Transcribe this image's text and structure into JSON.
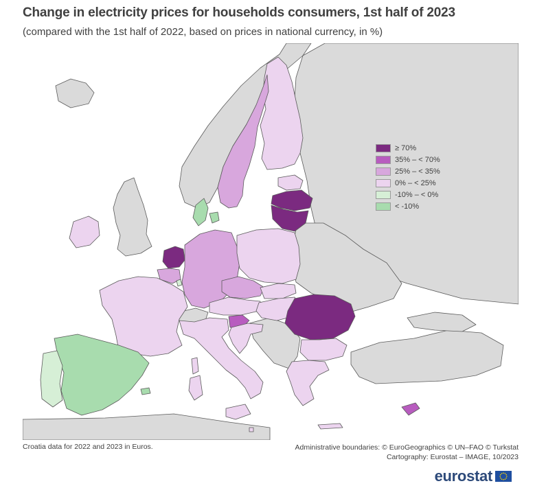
{
  "title": "Change in electricity prices for households consumers, 1st half of 2023",
  "subtitle": "(compared with the 1st half of 2022, based on prices in national currency, in %)",
  "legend": [
    {
      "label": "≥ 70%",
      "color": "#7b2a80"
    },
    {
      "label": "35% – < 70%",
      "color": "#b85cbf"
    },
    {
      "label": "25% – < 35%",
      "color": "#d8a7dd"
    },
    {
      "label": "0% – < 25%",
      "color": "#ecd4ef"
    },
    {
      "label": "-10% – < 0%",
      "color": "#d6efd6"
    },
    {
      "label": "< -10%",
      "color": "#a8dcae"
    }
  ],
  "colors": {
    "no_data": "#dadada",
    "sea": "#ffffff",
    "border": "#5a5a5a"
  },
  "notes": {
    "left": "Croatia data for 2022 and 2023 in Euros.",
    "right_line1": "Administrative boundaries: © EuroGeographics © UN–FAO © Turkstat",
    "right_line2": "Cartography: Eurostat – IMAGE, 10/2023"
  },
  "brand": {
    "name": "eurostat",
    "icon": "eu-flag-icon"
  }
}
